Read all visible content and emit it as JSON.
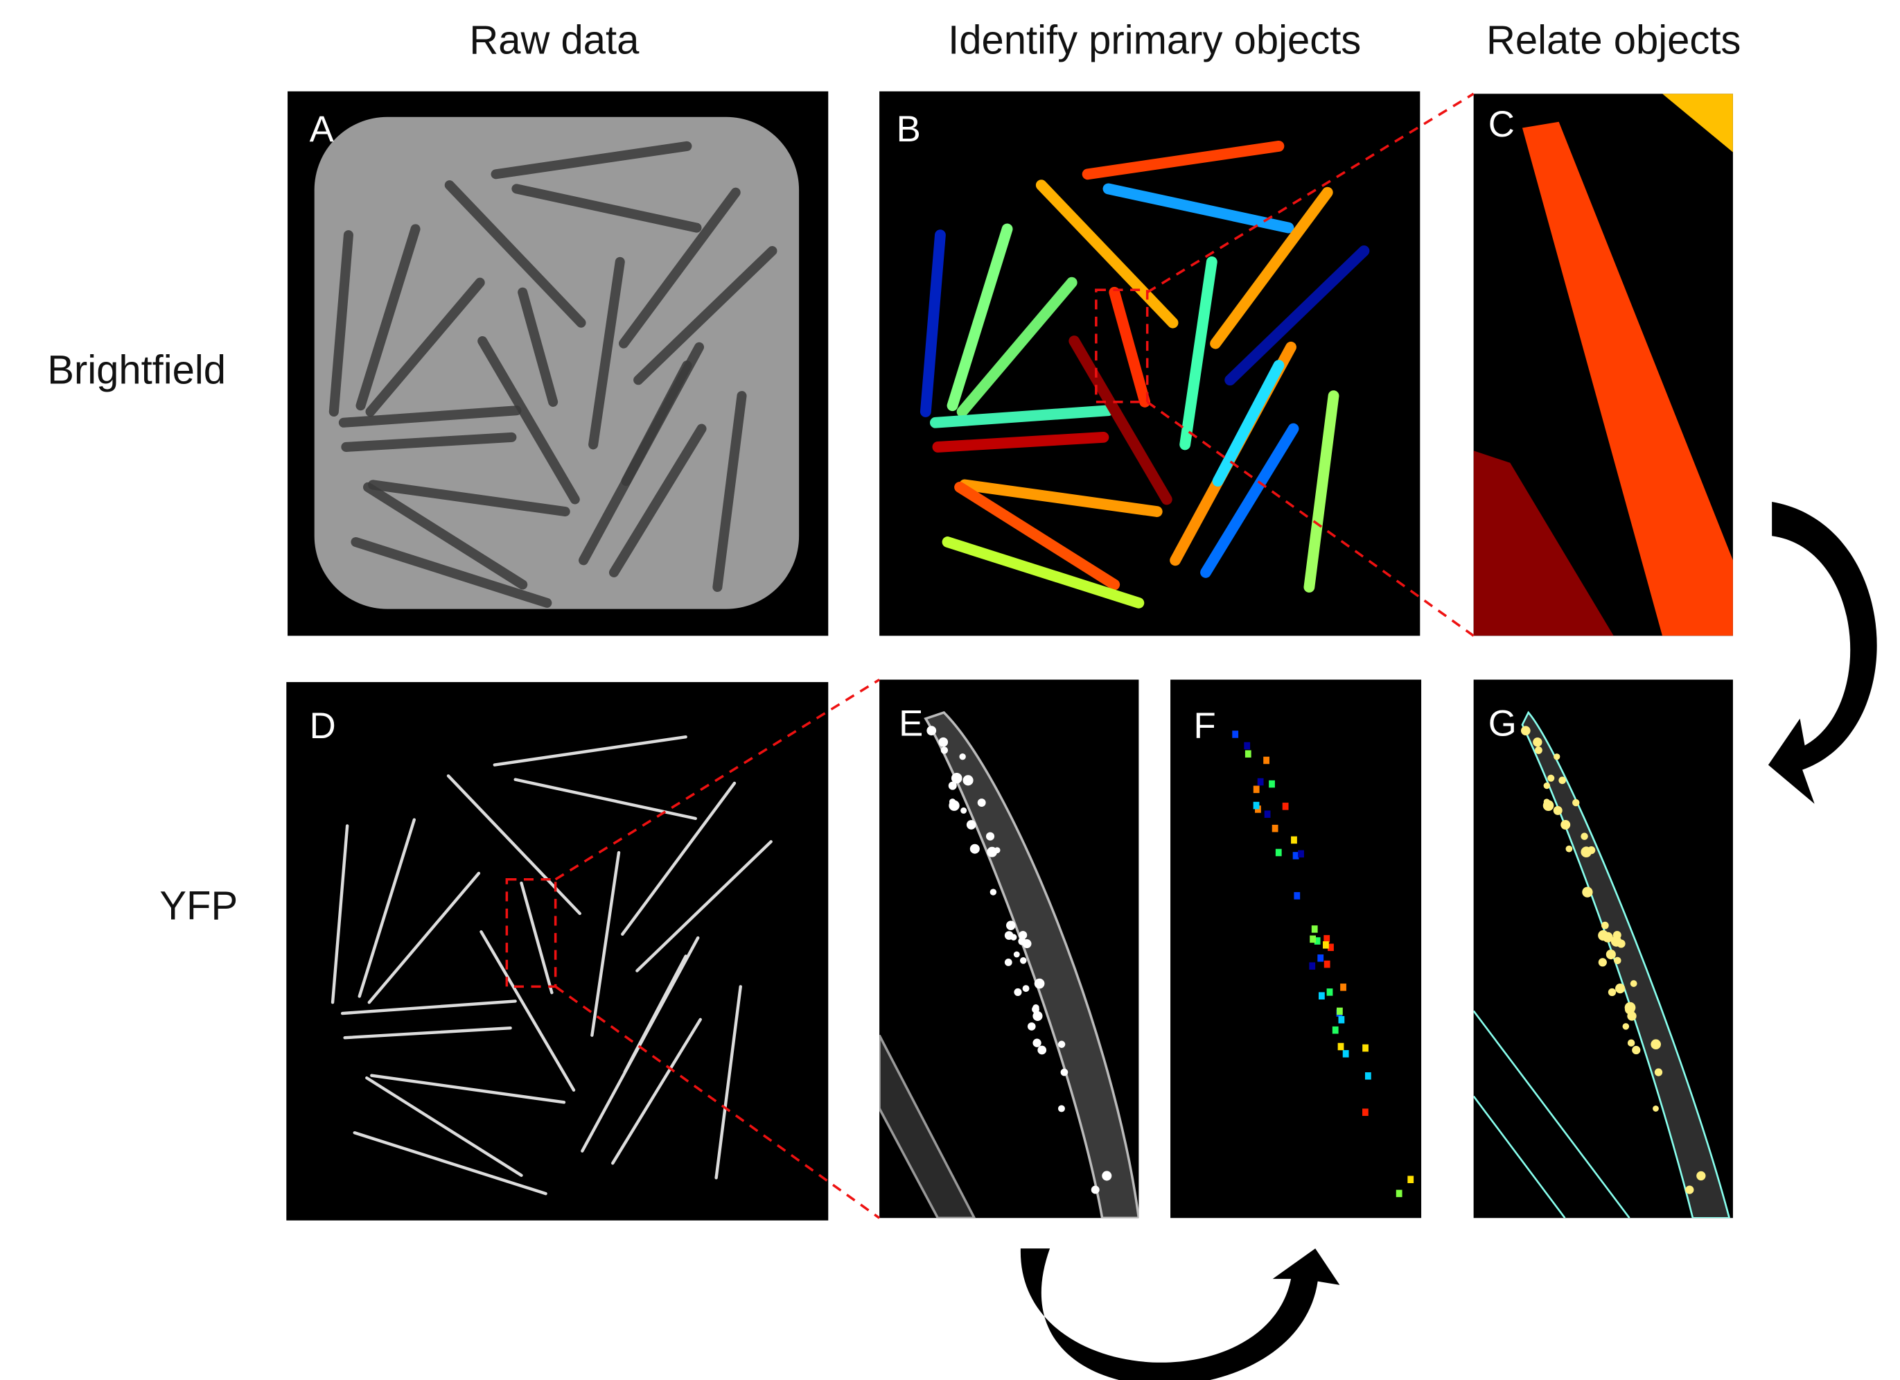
{
  "column_headers": [
    "Raw data",
    "Identify primary objects",
    "Relate objects"
  ],
  "row_labels": [
    "Brightfield",
    "YFP"
  ],
  "panels": [
    "A",
    "B",
    "C",
    "D",
    "E",
    "F",
    "G"
  ]
}
